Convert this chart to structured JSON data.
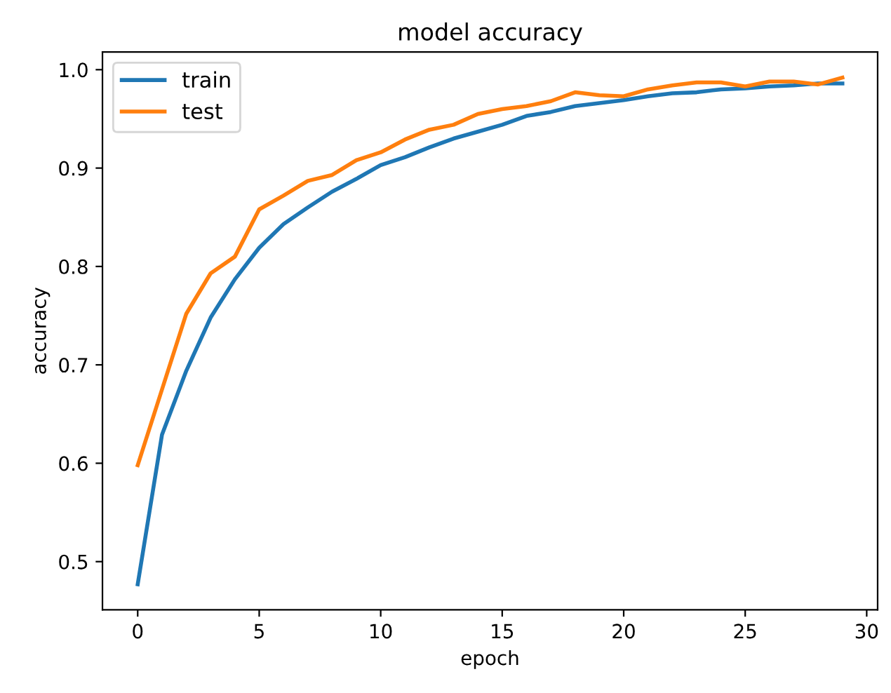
{
  "chart_data": {
    "type": "line",
    "title": "model accuracy",
    "xlabel": "epoch",
    "ylabel": "accuracy",
    "x": [
      0,
      1,
      2,
      3,
      4,
      5,
      6,
      7,
      8,
      9,
      10,
      11,
      12,
      13,
      14,
      15,
      16,
      17,
      18,
      19,
      20,
      21,
      22,
      23,
      24,
      25,
      26,
      27,
      28,
      29
    ],
    "series": [
      {
        "name": "train",
        "color": "#1f77b4",
        "values": [
          0.477,
          0.629,
          0.694,
          0.748,
          0.787,
          0.819,
          0.843,
          0.86,
          0.876,
          0.889,
          0.903,
          0.911,
          0.921,
          0.93,
          0.937,
          0.944,
          0.953,
          0.957,
          0.963,
          0.966,
          0.969,
          0.973,
          0.976,
          0.977,
          0.98,
          0.981,
          0.983,
          0.984,
          0.986,
          0.986
        ]
      },
      {
        "name": "test",
        "color": "#ff7f0e",
        "values": [
          0.598,
          0.675,
          0.752,
          0.793,
          0.81,
          0.858,
          0.872,
          0.887,
          0.893,
          0.908,
          0.916,
          0.929,
          0.939,
          0.944,
          0.955,
          0.96,
          0.963,
          0.968,
          0.977,
          0.974,
          0.973,
          0.98,
          0.984,
          0.987,
          0.987,
          0.983,
          0.988,
          0.988,
          0.985,
          0.992
        ]
      }
    ],
    "xlim": [
      -1.45,
      30.45
    ],
    "ylim": [
      0.451,
      1.018
    ],
    "xticks": [
      0,
      5,
      10,
      15,
      20,
      25,
      30
    ],
    "yticks": [
      0.5,
      0.6,
      0.7,
      0.8,
      0.9,
      {
        "value": 1,
        "label": "1.0"
      }
    ],
    "legend": "top left",
    "grid": false,
    "marker": "none",
    "line_style": "solid"
  }
}
